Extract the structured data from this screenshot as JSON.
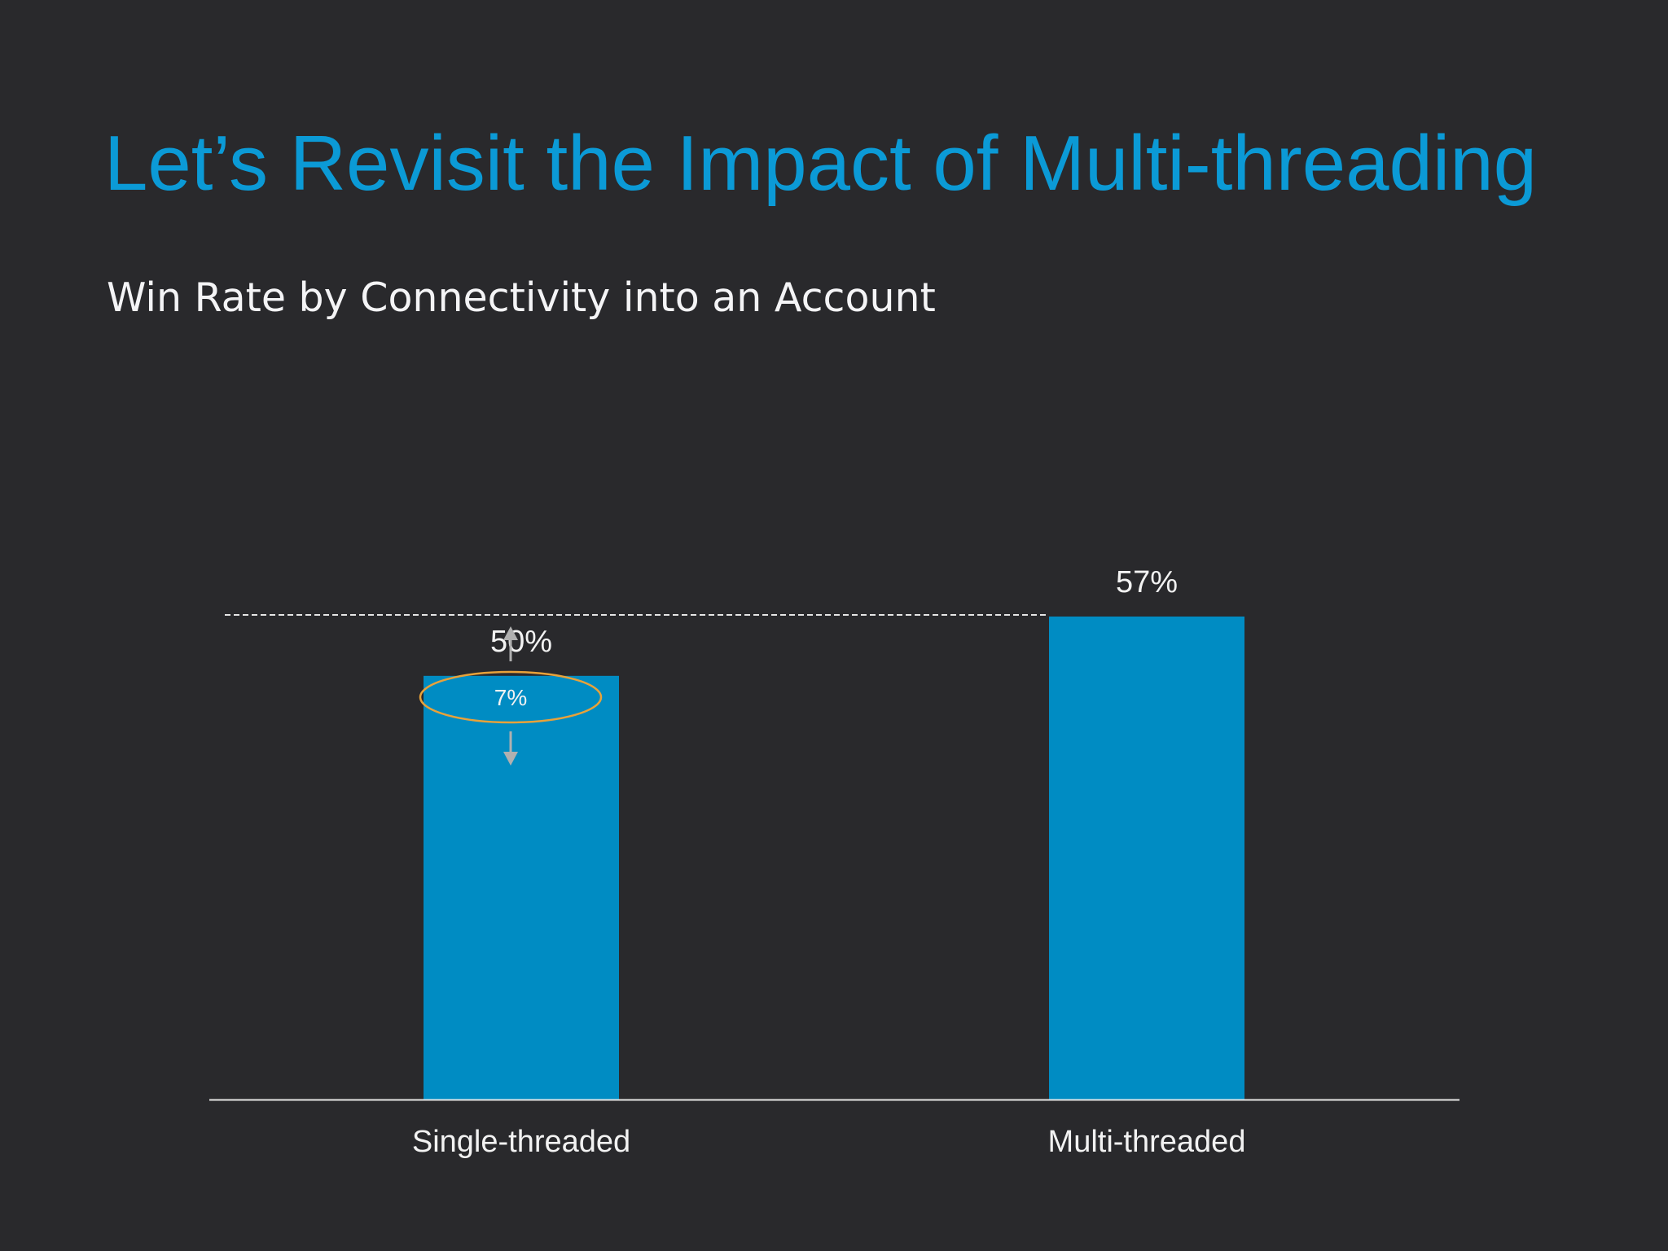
{
  "slide": {
    "title": "Let’s Revisit the Impact of Multi-threading",
    "subtitle": "Win Rate by Connectivity into an Account"
  },
  "colors": {
    "background": "#29292c",
    "title": "#0b9ad6",
    "bar": "#008cc3",
    "text": "#f2f2f2",
    "axis": "#e6e6e6",
    "annotation_ellipse": "#e8a23a",
    "arrow": "#b0b0b0"
  },
  "chart_data": {
    "type": "bar",
    "categories": [
      "Single-threaded",
      "Multi-threaded"
    ],
    "values": [
      50,
      57
    ],
    "value_labels": [
      "50%",
      "57%"
    ],
    "unit": "%",
    "ylim": [
      0,
      58
    ],
    "grid": false,
    "legend": "none",
    "annotation": {
      "label": "7%",
      "type": "difference",
      "from_category": "Single-threaded",
      "to_category": "Multi-threaded"
    }
  }
}
